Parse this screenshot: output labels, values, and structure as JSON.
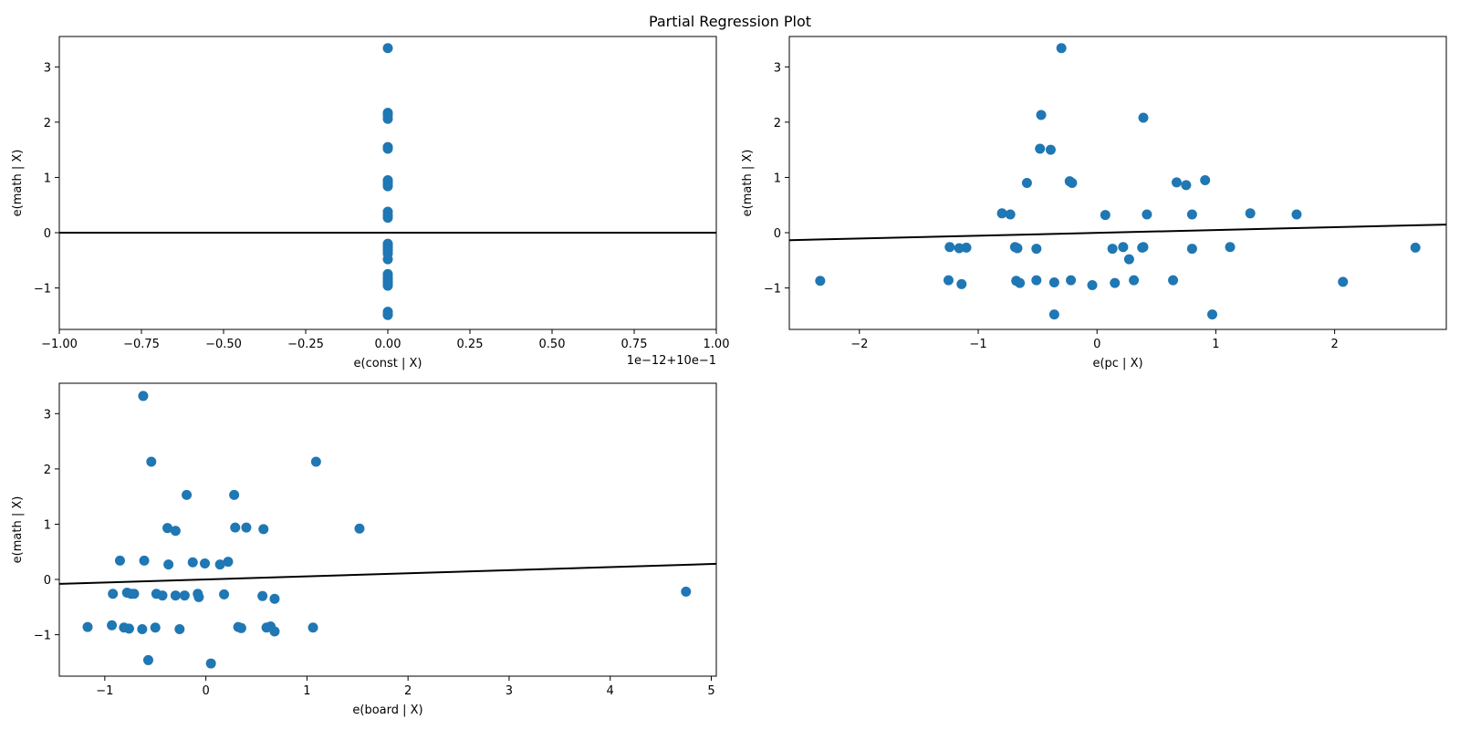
{
  "figure": {
    "title": "Partial Regression Plot"
  },
  "colors": {
    "points": "#1f77b4",
    "fit_line": "#000000",
    "axes": "#000000",
    "background": "#ffffff"
  },
  "chart_data": [
    {
      "type": "scatter",
      "id": "const",
      "xlabel": "e(const | X)",
      "ylabel": "e(math | X)",
      "offset_text": "1e−12+10e−1",
      "xlim": [
        -1.0,
        1.0
      ],
      "ylim": [
        -1.75,
        3.55
      ],
      "xticks": [
        -1.0,
        -0.75,
        -0.5,
        -0.25,
        0.0,
        0.25,
        0.5,
        0.75,
        1.0
      ],
      "xtick_labels": [
        "−1.00",
        "−0.75",
        "−0.50",
        "−0.25",
        "0.00",
        "0.25",
        "0.50",
        "0.75",
        "1.00"
      ],
      "yticks": [
        -1,
        0,
        1,
        2,
        3
      ],
      "ytick_labels": [
        "−1",
        "0",
        "1",
        "2",
        "3"
      ],
      "fit_line": {
        "slope": 0.0,
        "intercept": 0.0
      },
      "points": {
        "x": [
          0,
          0,
          0,
          0,
          0,
          0,
          0,
          0,
          0,
          0,
          0,
          0,
          0,
          0,
          0,
          0,
          0,
          0,
          0,
          0,
          0,
          0,
          0,
          0,
          0,
          0,
          0,
          0,
          0,
          0,
          0
        ],
        "y": [
          3.34,
          2.17,
          2.12,
          2.06,
          1.55,
          1.52,
          0.95,
          0.92,
          0.88,
          0.84,
          0.38,
          0.32,
          0.27,
          -0.2,
          -0.25,
          -0.28,
          -0.33,
          -0.38,
          -0.48,
          -0.75,
          -0.8,
          -0.84,
          -0.88,
          -0.9,
          -0.94,
          -0.96,
          -1.43,
          -1.49,
          -1.48,
          -0.22,
          -0.3
        ]
      }
    },
    {
      "type": "scatter",
      "id": "pc",
      "xlabel": "e(pc | X)",
      "ylabel": "e(math | X)",
      "xlim": [
        -2.59,
        2.94
      ],
      "ylim": [
        -1.75,
        3.55
      ],
      "xticks": [
        -2,
        -1,
        0,
        1,
        2
      ],
      "xtick_labels": [
        "−2",
        "−1",
        "0",
        "1",
        "2"
      ],
      "yticks": [
        -1,
        0,
        1,
        2,
        3
      ],
      "ytick_labels": [
        "−1",
        "0",
        "1",
        "2",
        "3"
      ],
      "fit_line": {
        "slope": 0.0512,
        "intercept": -0.003
      },
      "points": {
        "x": [
          -0.3,
          -0.47,
          0.39,
          -0.48,
          -0.39,
          -0.23,
          -0.21,
          0.67,
          0.75,
          0.91,
          -0.59,
          -0.8,
          -0.73,
          0.07,
          0.42,
          0.8,
          1.29,
          1.68,
          -1.24,
          -1.16,
          -1.1,
          -0.69,
          -0.67,
          -0.51,
          0.13,
          0.22,
          0.38,
          0.39,
          0.8,
          1.12,
          2.68,
          0.27,
          -2.33,
          -1.25,
          -1.14,
          -0.68,
          -0.65,
          -0.51,
          -0.36,
          -0.22,
          -0.04,
          0.15,
          0.31,
          0.64,
          2.07,
          -0.36,
          0.97
        ],
        "y": [
          3.34,
          2.13,
          2.08,
          1.52,
          1.5,
          0.93,
          0.9,
          0.91,
          0.86,
          0.95,
          0.9,
          0.35,
          0.33,
          0.32,
          0.33,
          0.33,
          0.35,
          0.33,
          -0.26,
          -0.28,
          -0.27,
          -0.26,
          -0.28,
          -0.29,
          -0.29,
          -0.26,
          -0.27,
          -0.26,
          -0.29,
          -0.26,
          -0.27,
          -0.48,
          -0.87,
          -0.86,
          -0.93,
          -0.87,
          -0.91,
          -0.86,
          -0.9,
          -0.86,
          -0.95,
          -0.91,
          -0.86,
          -0.86,
          -0.89,
          -1.48,
          -1.48
        ]
      }
    },
    {
      "type": "scatter",
      "id": "board",
      "xlabel": "e(board | X)",
      "ylabel": "e(math | X)",
      "xlim": [
        -1.45,
        5.05
      ],
      "ylim": [
        -1.75,
        3.55
      ],
      "xticks": [
        -1,
        0,
        1,
        2,
        3,
        4,
        5
      ],
      "xtick_labels": [
        "−1",
        "0",
        "1",
        "2",
        "3",
        "4",
        "5"
      ],
      "yticks": [
        -1,
        0,
        1,
        2,
        3
      ],
      "ytick_labels": [
        "−1",
        "0",
        "1",
        "2",
        "3"
      ],
      "fit_line": {
        "slope": 0.0559,
        "intercept": 0.0
      },
      "points": {
        "x": [
          -0.62,
          -0.54,
          1.09,
          -0.19,
          0.28,
          -0.38,
          -0.3,
          0.29,
          0.4,
          0.57,
          1.52,
          -0.85,
          -0.61,
          -0.37,
          -0.13,
          -0.01,
          0.14,
          0.22,
          -0.92,
          -0.78,
          -0.74,
          -0.71,
          -0.49,
          -0.43,
          -0.3,
          -0.21,
          -0.08,
          -0.07,
          0.18,
          0.56,
          0.68,
          4.75,
          -1.17,
          -0.93,
          -0.81,
          -0.76,
          -0.63,
          -0.5,
          -0.26,
          0.32,
          0.35,
          0.6,
          0.64,
          0.68,
          1.06,
          -0.57,
          0.05
        ],
        "y": [
          3.32,
          2.13,
          2.13,
          1.53,
          1.53,
          0.93,
          0.88,
          0.94,
          0.94,
          0.91,
          0.92,
          0.34,
          0.34,
          0.27,
          0.31,
          0.29,
          0.27,
          0.32,
          -0.26,
          -0.24,
          -0.26,
          -0.26,
          -0.26,
          -0.29,
          -0.29,
          -0.29,
          -0.26,
          -0.32,
          -0.27,
          -0.3,
          -0.35,
          -0.22,
          -0.86,
          -0.83,
          -0.87,
          -0.89,
          -0.9,
          -0.87,
          -0.9,
          -0.86,
          -0.88,
          -0.87,
          -0.85,
          -0.94,
          -0.87,
          -1.46,
          -1.52
        ]
      }
    }
  ]
}
